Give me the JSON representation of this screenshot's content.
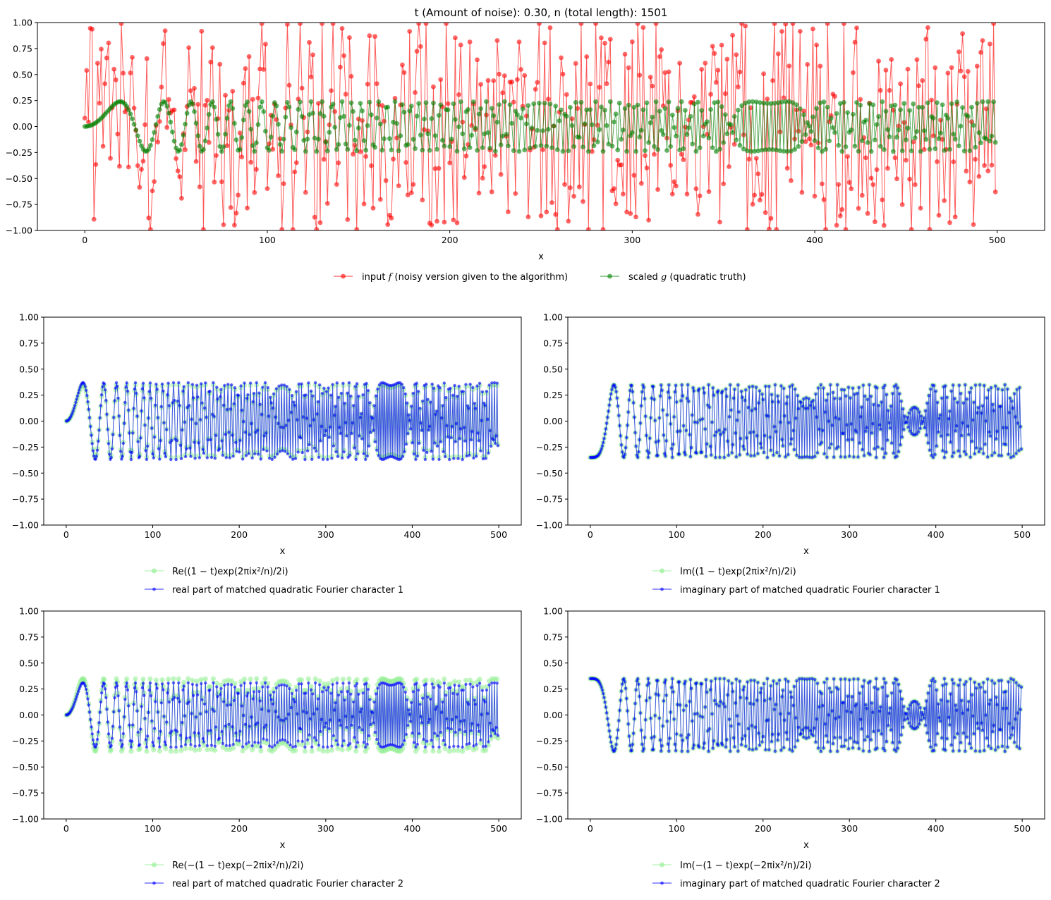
{
  "colors": {
    "noisy": "#ff0000",
    "truth": "#008000",
    "target": "#90ee90",
    "matched": "#0000ff",
    "axes": "#000000",
    "background": "#ffffff"
  },
  "chart_data": [
    {
      "id": "top",
      "type": "line",
      "title": "t (Amount of noise): 0.30, n (total length): 1501",
      "xlabel": "x",
      "ylabel": "",
      "xlim": [
        -26,
        526
      ],
      "ylim": [
        -1.0,
        1.0
      ],
      "xticks": [
        0,
        100,
        200,
        300,
        400,
        500
      ],
      "yticks": [
        -1.0,
        -0.75,
        -0.5,
        -0.25,
        0.0,
        0.25,
        0.5,
        0.75,
        1.0
      ],
      "ytick_labels": [
        "−1.00",
        "−0.75",
        "−0.50",
        "−0.25",
        "0.00",
        "0.25",
        "0.50",
        "0.75",
        "1.00"
      ],
      "grid": false,
      "legend": "below",
      "series": [
        {
          "key": "noisy",
          "name": "input f (noisy version given to the algorithm)",
          "name_plain": "input ",
          "name_math": "f",
          "name_rest": " (noisy version given to the algorithm)",
          "generator": "noisy",
          "x_range": [
            0,
            499
          ],
          "amplitude": 1.0
        },
        {
          "key": "truth",
          "name": "scaled g (quadratic truth)",
          "name_plain": "scaled ",
          "name_math": "g",
          "name_rest": " (quadratic truth)",
          "generator": "quad_re",
          "x_range": [
            0,
            499
          ],
          "amplitude": 0.24
        }
      ]
    },
    {
      "id": "mid-left",
      "type": "line",
      "xlabel": "x",
      "xlim": [
        -26,
        526
      ],
      "ylim": [
        -1.0,
        1.0
      ],
      "xticks": [
        0,
        100,
        200,
        300,
        400,
        500
      ],
      "yticks": [
        -1.0,
        -0.75,
        -0.5,
        -0.25,
        0.0,
        0.25,
        0.5,
        0.75,
        1.0
      ],
      "ytick_labels": [
        "−1.00",
        "−0.75",
        "−0.50",
        "−0.25",
        "0.00",
        "0.25",
        "0.50",
        "0.75",
        "1.00"
      ],
      "grid": false,
      "legend": "below",
      "series": [
        {
          "key": "target",
          "name": "Re((1 − t)exp(2πix²/n)/2i)",
          "legend_label": "Re((1 − t)exp(2πix²/n)/2i)",
          "generator": "quad_re",
          "x_range": [
            0,
            499
          ],
          "amplitude": 0.35
        },
        {
          "key": "matched",
          "name": "real part of matched quadratic Fourier character 1",
          "generator": "quad_re",
          "x_range": [
            0,
            499
          ],
          "amplitude": 0.37
        }
      ]
    },
    {
      "id": "mid-right",
      "type": "line",
      "xlabel": "x",
      "xlim": [
        -26,
        526
      ],
      "ylim": [
        -1.0,
        1.0
      ],
      "xticks": [
        0,
        100,
        200,
        300,
        400,
        500
      ],
      "yticks": [
        -1.0,
        -0.75,
        -0.5,
        -0.25,
        0.0,
        0.25,
        0.5,
        0.75,
        1.0
      ],
      "ytick_labels": [
        "−1.00",
        "−0.75",
        "−0.50",
        "−0.25",
        "0.00",
        "0.25",
        "0.50",
        "0.75",
        "1.00"
      ],
      "grid": false,
      "legend": "below",
      "series": [
        {
          "key": "target",
          "name": "Im((1 − t)exp(2πix²/n)/2i)",
          "legend_label": "Im((1 − t)exp(2πix²/n)/2i)",
          "generator": "quad_im",
          "x_range": [
            0,
            499
          ],
          "amplitude": 0.35
        },
        {
          "key": "matched",
          "name": "imaginary part of matched quadratic Fourier character 1",
          "generator": "quad_im",
          "x_range": [
            0,
            499
          ],
          "amplitude": 0.35
        }
      ]
    },
    {
      "id": "bottom-left",
      "type": "line",
      "xlabel": "x",
      "xlim": [
        -26,
        526
      ],
      "ylim": [
        -1.0,
        1.0
      ],
      "xticks": [
        0,
        100,
        200,
        300,
        400,
        500
      ],
      "yticks": [
        -1.0,
        -0.75,
        -0.5,
        -0.25,
        0.0,
        0.25,
        0.5,
        0.75,
        1.0
      ],
      "ytick_labels": [
        "−1.00",
        "−0.75",
        "−0.50",
        "−0.25",
        "0.00",
        "0.25",
        "0.50",
        "0.75",
        "1.00"
      ],
      "grid": false,
      "legend": "below",
      "series": [
        {
          "key": "target",
          "name": "Re(−(1 − t)exp(−2πix²/n)/2i)",
          "legend_label": "Re(−(1 − t)exp(−2πix²/n)/2i)",
          "generator": "quad_re",
          "x_range": [
            0,
            499
          ],
          "amplitude": 0.35
        },
        {
          "key": "matched",
          "name": "real part of matched quadratic Fourier character 2",
          "generator": "quad_re",
          "x_range": [
            0,
            499
          ],
          "amplitude": 0.31
        }
      ]
    },
    {
      "id": "bottom-right",
      "type": "line",
      "xlabel": "x",
      "xlim": [
        -26,
        526
      ],
      "ylim": [
        -1.0,
        1.0
      ],
      "xticks": [
        0,
        100,
        200,
        300,
        400,
        500
      ],
      "yticks": [
        -1.0,
        -0.75,
        -0.5,
        -0.25,
        0.0,
        0.25,
        0.5,
        0.75,
        1.0
      ],
      "ytick_labels": [
        "−1.00",
        "−0.75",
        "−0.50",
        "−0.25",
        "0.00",
        "0.25",
        "0.50",
        "0.75",
        "1.00"
      ],
      "grid": false,
      "legend": "below",
      "series": [
        {
          "key": "target",
          "name": "Im(−(1 − t)exp(−2πix²/n)/2i)",
          "legend_label": "Im(−(1 − t)exp(−2πix²/n)/2i)",
          "generator": "quad_im_neg",
          "x_range": [
            0,
            499
          ],
          "amplitude": 0.35
        },
        {
          "key": "matched",
          "name": "imaginary part of matched quadratic Fourier character 2",
          "generator": "quad_im_neg",
          "x_range": [
            0,
            499
          ],
          "amplitude": 0.35
        }
      ]
    }
  ]
}
